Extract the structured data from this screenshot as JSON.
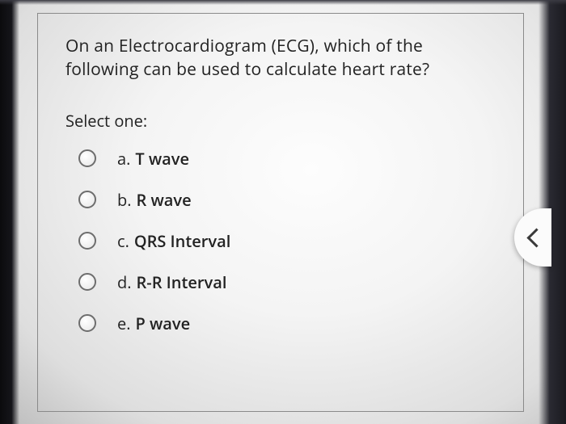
{
  "question": {
    "text": "On an Electrocardiogram (ECG), which of the following can be used to calculate heart rate?",
    "select_label": "Select one:"
  },
  "options": {
    "a": {
      "letter": "a.",
      "text": "T wave"
    },
    "b": {
      "letter": "b.",
      "text": "R wave"
    },
    "c": {
      "letter": "c.",
      "text": "QRS Interval"
    },
    "d": {
      "letter": "d.",
      "text": "R-R Interval"
    },
    "e": {
      "letter": "e.",
      "text": "P wave"
    }
  },
  "styling": {
    "card_border_color": "#8a8a8a",
    "radio_border_color": "#6d6d6d",
    "text_color": "#222222",
    "question_fontsize": 21,
    "option_fontsize": 20,
    "background_gradient": [
      "#fdfdfd",
      "#f4f4f4",
      "#dedede",
      "#bcbcbc"
    ],
    "bezel_color": "#15151a",
    "back_tab_bg": "#fbfbfb",
    "chevron_color": "#3a3a3a",
    "option_font_weight": 600
  }
}
